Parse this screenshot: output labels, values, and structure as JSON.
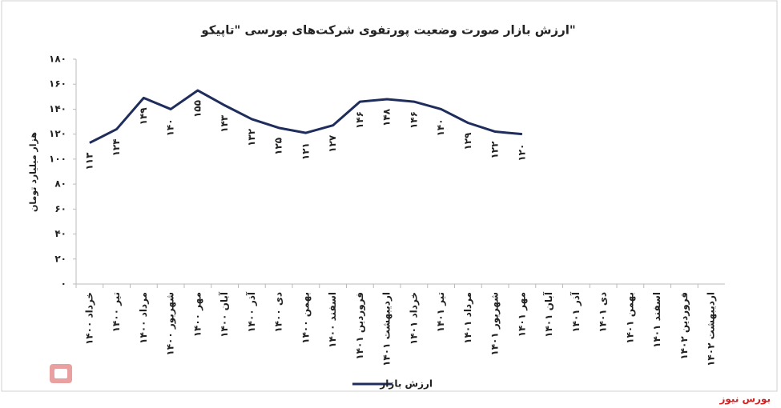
{
  "chart_data": {
    "type": "line",
    "title": "ارزش بازار صورت وضعیت پورتفوی شرکت‌های بورسی \"تاپیکو\"",
    "y_label": "هزار میلیارد تومان",
    "categories": [
      "خرداد ۱۴۰۰",
      "تیر ۱۴۰۰",
      "مرداد ۱۴۰۰",
      "شهریور ۱۴۰۰",
      "مهر ۱۴۰۰",
      "آبان ۱۴۰۰",
      "آذر ۱۴۰۰",
      "دی ۱۴۰۰",
      "بهمن ۱۴۰۰",
      "اسفند ۱۴۰۰",
      "فروردین ۱۴۰۱",
      "اردیبهشت ۱۴۰۱",
      "خرداد ۱۴۰۱",
      "تیر ۱۴۰۱",
      "مرداد ۱۴۰۱",
      "شهریور ۱۴۰۱",
      "مهر ۱۴۰۱",
      "آبان ۱۴۰۱",
      "آذر ۱۴۰۱",
      "دی ۱۴۰۱",
      "بهمن ۱۴۰۱",
      "اسفند ۱۴۰۱",
      "فروردین ۱۴۰۲",
      "اردیبهشت ۱۴۰۲"
    ],
    "series": [
      {
        "name": "ارزش بازار",
        "color": "#1f2d5c",
        "values": [
          113,
          124,
          149,
          140,
          155,
          143,
          132,
          125,
          121,
          127,
          146,
          148,
          146,
          140,
          129,
          122,
          120,
          null,
          null,
          null,
          null,
          null,
          null,
          null
        ],
        "value_labels": [
          "۱۱۳",
          "۱۲۴",
          "۱۴۹",
          "۱۴۰",
          "۱۵۵",
          "۱۴۳",
          "۱۳۲",
          "۱۲۵",
          "۱۲۱",
          "۱۲۷",
          "۱۴۶",
          "۱۴۸",
          "۱۴۶",
          "۱۴۰",
          "۱۲۹",
          "۱۲۲",
          "۱۲۰",
          null,
          null,
          null,
          null,
          null,
          null,
          null
        ]
      }
    ],
    "ylim": [
      0,
      180
    ],
    "yticks": [
      {
        "value": 0,
        "label": "۰"
      },
      {
        "value": 20,
        "label": "۲۰"
      },
      {
        "value": 40,
        "label": "۴۰"
      },
      {
        "value": 60,
        "label": "۶۰"
      },
      {
        "value": 80,
        "label": "۸۰"
      },
      {
        "value": 100,
        "label": "۱۰۰"
      },
      {
        "value": 120,
        "label": "۱۲۰"
      },
      {
        "value": 140,
        "label": "۱۴۰"
      },
      {
        "value": 160,
        "label": "۱۶۰"
      },
      {
        "value": 180,
        "label": "۱۸۰"
      }
    ],
    "legend": "bottom",
    "watermark": "بورس نیوز"
  }
}
